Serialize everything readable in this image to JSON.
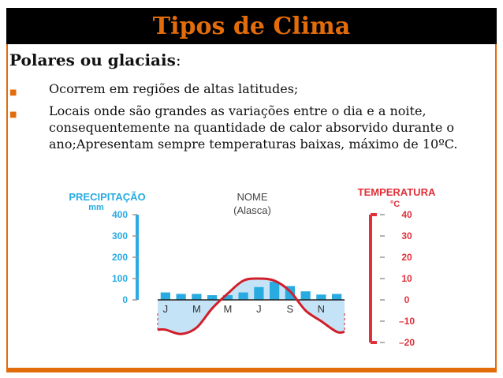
{
  "slide": {
    "title": "Tipos de Clima",
    "heading": "Polares ou glaciais",
    "heading_suffix": ":",
    "bullets": [
      "Ocorrem em regiões de altas latitudes;",
      "Locais onde são grandes as variações entre o dia e a noite, consequentemente na quantidade de calor absorvido durante o ano;Apresentam sempre temperaturas baixas, máximo de 10ºC."
    ]
  },
  "colors": {
    "title_bar": "#000000",
    "title_text": "#e36c0a",
    "frame": "#e36c0a",
    "precip_axis": "#29abe2",
    "temp_axis": "#e0303a",
    "bars": "#29abe2",
    "temp_line": "#d11f2a",
    "fill": "#c5e3f6"
  },
  "chart_data": {
    "type": "bar",
    "title": "NOME",
    "subtitle": "(Alasca)",
    "y_left_label": "PRECIPITAÇÃO",
    "y_left_unit": "mm",
    "y_right_label": "TEMPERATURA",
    "y_right_unit": "°C",
    "y_left_ticks": [
      "400",
      "300",
      "200",
      "100",
      "0"
    ],
    "y_right_ticks": [
      "40",
      "30",
      "20",
      "10",
      "0",
      "–10",
      "–20"
    ],
    "y_left_range": [
      0,
      400
    ],
    "y_right_range": [
      -20,
      40
    ],
    "month_labels": [
      "J",
      "M",
      "M",
      "J",
      "S",
      "N"
    ],
    "months": 12,
    "series": [
      {
        "name": "Precipitação",
        "type": "bar",
        "values": [
          35,
          28,
          28,
          22,
          22,
          35,
          60,
          85,
          65,
          40,
          25,
          28
        ]
      },
      {
        "name": "Temperatura",
        "type": "line",
        "values": [
          -14,
          -16,
          -13,
          -4,
          3,
          9,
          10,
          9,
          4,
          -5,
          -10,
          -15
        ]
      }
    ],
    "grid": false,
    "legend": "none"
  }
}
